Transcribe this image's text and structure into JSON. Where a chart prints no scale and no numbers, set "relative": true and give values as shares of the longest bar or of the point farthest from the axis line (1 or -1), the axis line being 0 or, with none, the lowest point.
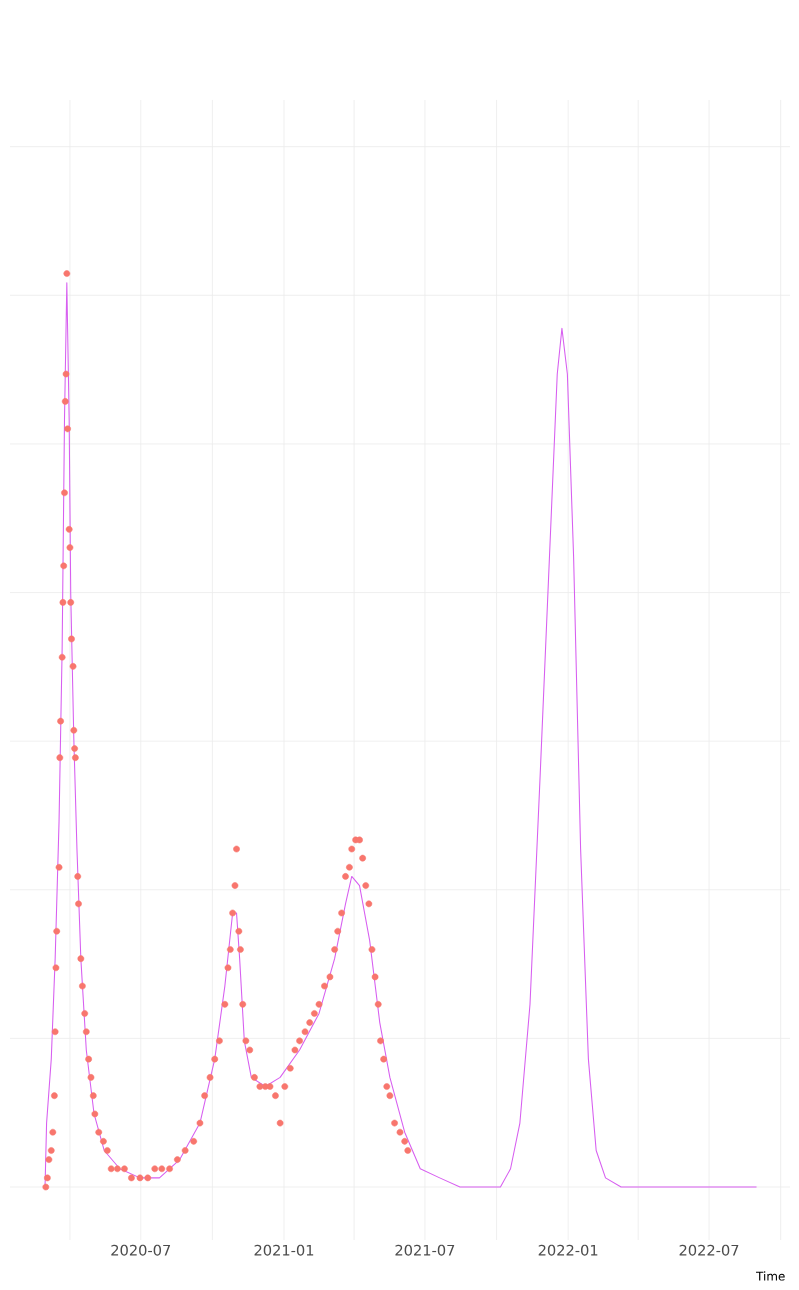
{
  "chart_data": {
    "type": "line",
    "xlabel": "Time",
    "relative": true,
    "grid": true,
    "xlim": [
      "2020-01-15",
      "2022-10-13"
    ],
    "xticks": [
      {
        "value": "2020-04",
        "label": null
      },
      {
        "value": "2020-07",
        "label": "2020-07"
      },
      {
        "value": "2020-10",
        "label": null
      },
      {
        "value": "2021-01",
        "label": "2021-01"
      },
      {
        "value": "2021-04",
        "label": null
      },
      {
        "value": "2021-07",
        "label": "2021-07"
      },
      {
        "value": "2021-10",
        "label": null
      },
      {
        "value": "2022-01",
        "label": "2022-01"
      },
      {
        "value": "2022-04",
        "label": null
      },
      {
        "value": "2022-07",
        "label": "2022-07"
      },
      {
        "value": "2022-10",
        "label": null
      }
    ],
    "series": [
      {
        "type": "scatter",
        "marker": "circle",
        "color": "#f8766d",
        "x": [
          "2020-03-01",
          "2020-03-03",
          "2020-03-05",
          "2020-03-08",
          "2020-03-10",
          "2020-03-12",
          "2020-03-13",
          "2020-03-14",
          "2020-03-15",
          "2020-03-18",
          "2020-03-19",
          "2020-03-20",
          "2020-03-22",
          "2020-03-23",
          "2020-03-24",
          "2020-03-25",
          "2020-03-26",
          "2020-03-27",
          "2020-03-28",
          "2020-03-29",
          "2020-03-31",
          "2020-04-01",
          "2020-04-02",
          "2020-04-03",
          "2020-04-05",
          "2020-04-06",
          "2020-04-07",
          "2020-04-08",
          "2020-04-11",
          "2020-04-12",
          "2020-04-15",
          "2020-04-17",
          "2020-04-20",
          "2020-04-22",
          "2020-04-25",
          "2020-04-28",
          "2020-05-01",
          "2020-05-03",
          "2020-05-08",
          "2020-05-14",
          "2020-05-19",
          "2020-05-24",
          "2020-06-01",
          "2020-06-10",
          "2020-06-19",
          "2020-06-30",
          "2020-07-10",
          "2020-07-19",
          "2020-07-28",
          "2020-08-07",
          "2020-08-17",
          "2020-08-27",
          "2020-09-07",
          "2020-09-15",
          "2020-09-21",
          "2020-09-28",
          "2020-10-04",
          "2020-10-10",
          "2020-10-17",
          "2020-10-21",
          "2020-10-24",
          "2020-10-27",
          "2020-10-30",
          "2020-11-01",
          "2020-11-04",
          "2020-11-06",
          "2020-11-09",
          "2020-11-13",
          "2020-11-18",
          "2020-11-24",
          "2020-12-01",
          "2020-12-08",
          "2020-12-14",
          "2020-12-21",
          "2020-12-27",
          "2021-01-02",
          "2021-01-09",
          "2021-01-15",
          "2021-01-21",
          "2021-01-28",
          "2021-02-03",
          "2021-02-09",
          "2021-02-15",
          "2021-02-22",
          "2021-03-01",
          "2021-03-07",
          "2021-03-11",
          "2021-03-16",
          "2021-03-21",
          "2021-03-26",
          "2021-03-29",
          "2021-04-03",
          "2021-04-08",
          "2021-04-12",
          "2021-04-16",
          "2021-04-20",
          "2021-04-24",
          "2021-04-28",
          "2021-05-02",
          "2021-05-05",
          "2021-05-09",
          "2021-05-13",
          "2021-05-17",
          "2021-05-23",
          "2021-05-30",
          "2021-06-05",
          "2021-06-09"
        ],
        "values": [
          0.0,
          0.01,
          0.03,
          0.04,
          0.06,
          0.1,
          0.17,
          0.24,
          0.28,
          0.35,
          0.47,
          0.51,
          0.58,
          0.64,
          0.68,
          0.76,
          0.86,
          0.89,
          1.0,
          0.83,
          0.72,
          0.7,
          0.64,
          0.6,
          0.57,
          0.5,
          0.48,
          0.47,
          0.34,
          0.31,
          0.25,
          0.22,
          0.19,
          0.17,
          0.14,
          0.12,
          0.1,
          0.08,
          0.06,
          0.05,
          0.04,
          0.02,
          0.02,
          0.02,
          0.01,
          0.01,
          0.01,
          0.02,
          0.02,
          0.02,
          0.03,
          0.04,
          0.05,
          0.07,
          0.1,
          0.12,
          0.14,
          0.16,
          0.2,
          0.24,
          0.26,
          0.3,
          0.33,
          0.37,
          0.28,
          0.26,
          0.2,
          0.16,
          0.15,
          0.12,
          0.11,
          0.11,
          0.11,
          0.1,
          0.07,
          0.11,
          0.13,
          0.15,
          0.16,
          0.17,
          0.18,
          0.19,
          0.2,
          0.22,
          0.23,
          0.26,
          0.28,
          0.3,
          0.34,
          0.35,
          0.37,
          0.38,
          0.38,
          0.36,
          0.33,
          0.31,
          0.26,
          0.23,
          0.2,
          0.16,
          0.14,
          0.11,
          0.1,
          0.07,
          0.06,
          0.05,
          0.04
        ]
      },
      {
        "marker": "none",
        "line_style": "solid",
        "color": "#d75ff0",
        "x": [
          "2020-02-29",
          "2020-03-02",
          "2020-03-08",
          "2020-03-13",
          "2020-03-18",
          "2020-03-22",
          "2020-03-25",
          "2020-03-28",
          "2020-03-31",
          "2020-04-02",
          "2020-04-06",
          "2020-04-10",
          "2020-04-15",
          "2020-04-22",
          "2020-05-02",
          "2020-05-15",
          "2020-06-04",
          "2020-06-30",
          "2020-07-25",
          "2020-08-20",
          "2020-09-15",
          "2020-10-04",
          "2020-10-17",
          "2020-10-27",
          "2020-11-01",
          "2020-11-05",
          "2020-11-11",
          "2020-11-20",
          "2020-12-08",
          "2020-12-27",
          "2021-01-21",
          "2021-02-15",
          "2021-03-07",
          "2021-03-21",
          "2021-03-29",
          "2021-04-08",
          "2021-04-21",
          "2021-05-04",
          "2021-05-17",
          "2021-06-05",
          "2021-06-25",
          "2021-07-20",
          "2021-08-15",
          "2021-09-10",
          "2021-10-06",
          "2021-10-19",
          "2021-10-31",
          "2021-11-13",
          "2021-11-26",
          "2021-12-09",
          "2021-12-18",
          "2021-12-24",
          "2021-12-31",
          "2022-01-08",
          "2022-01-17",
          "2022-01-27",
          "2022-02-06",
          "2022-02-18",
          "2022-03-10",
          "2022-04-17",
          "2022-06-20",
          "2022-08-31"
        ],
        "values": [
          0.0,
          0.07,
          0.14,
          0.25,
          0.4,
          0.59,
          0.84,
          0.99,
          0.84,
          0.65,
          0.49,
          0.37,
          0.25,
          0.15,
          0.08,
          0.04,
          0.02,
          0.01,
          0.01,
          0.03,
          0.07,
          0.14,
          0.22,
          0.3,
          0.3,
          0.25,
          0.16,
          0.12,
          0.11,
          0.12,
          0.15,
          0.19,
          0.25,
          0.31,
          0.34,
          0.33,
          0.27,
          0.18,
          0.12,
          0.06,
          0.02,
          0.01,
          0.0,
          0.0,
          0.0,
          0.02,
          0.07,
          0.2,
          0.45,
          0.71,
          0.89,
          0.94,
          0.89,
          0.69,
          0.37,
          0.14,
          0.04,
          0.01,
          0.0,
          0.0,
          0.0,
          0.0
        ]
      }
    ]
  }
}
